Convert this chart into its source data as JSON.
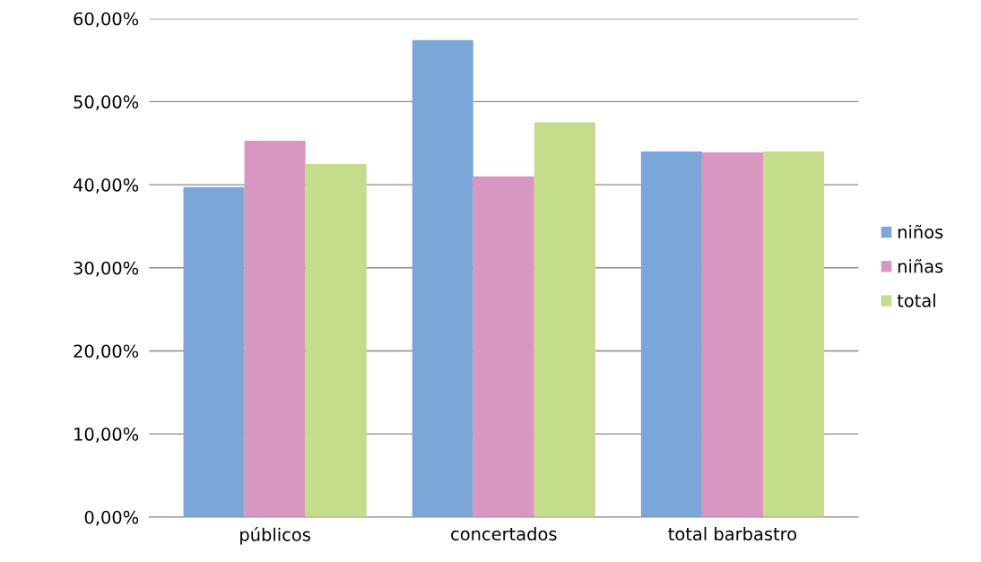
{
  "chart_data": {
    "type": "bar",
    "categories": [
      "públicos",
      "concertados",
      "total barbastro"
    ],
    "series": [
      {
        "name": "niños",
        "color": "#7aa6d8",
        "values": [
          39.7,
          57.4,
          44.0
        ]
      },
      {
        "name": "niñas",
        "color": "#d897c0",
        "values": [
          45.3,
          41.0,
          43.9
        ]
      },
      {
        "name": "total",
        "color": "#c5dc8a",
        "values": [
          42.5,
          47.5,
          44.0
        ]
      }
    ],
    "ylim": [
      0,
      60
    ],
    "yticks": [
      {
        "value": 0,
        "label": "0,00%"
      },
      {
        "value": 10,
        "label": "10,00%"
      },
      {
        "value": 20,
        "label": "20,00%"
      },
      {
        "value": 30,
        "label": "30,00%"
      },
      {
        "value": 40,
        "label": "40,00%"
      },
      {
        "value": 50,
        "label": "50,00%"
      },
      {
        "value": 60,
        "label": "60,00%"
      }
    ],
    "grid": "y",
    "legend": "right"
  }
}
